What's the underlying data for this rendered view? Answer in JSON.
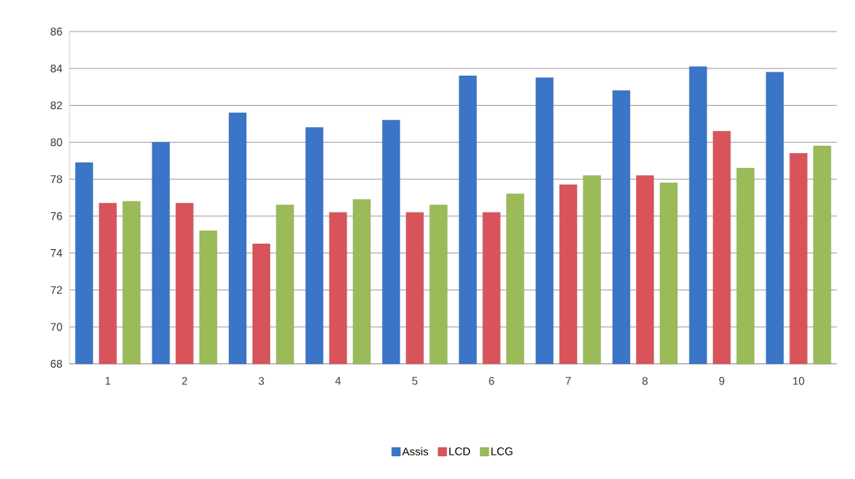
{
  "chart_data": {
    "type": "bar",
    "categories": [
      "1",
      "2",
      "3",
      "4",
      "5",
      "6",
      "7",
      "8",
      "9",
      "10"
    ],
    "series": [
      {
        "name": "Assis",
        "color": "#3a75c8",
        "values": [
          78.9,
          80.0,
          81.6,
          80.8,
          81.2,
          83.6,
          83.5,
          82.8,
          84.1,
          83.8
        ]
      },
      {
        "name": "LCD",
        "color": "#d9545a",
        "values": [
          76.7,
          76.7,
          74.5,
          76.2,
          76.2,
          76.2,
          77.7,
          78.2,
          80.6,
          79.4
        ]
      },
      {
        "name": "LCG",
        "color": "#9bbb59",
        "values": [
          76.8,
          75.2,
          76.6,
          76.9,
          76.6,
          77.2,
          78.2,
          77.8,
          78.6,
          79.8
        ]
      }
    ],
    "ylim": [
      68,
      86
    ],
    "yticks": [
      68,
      70,
      72,
      74,
      76,
      78,
      80,
      82,
      84,
      86
    ],
    "grid": "y",
    "legend": "bottom"
  }
}
